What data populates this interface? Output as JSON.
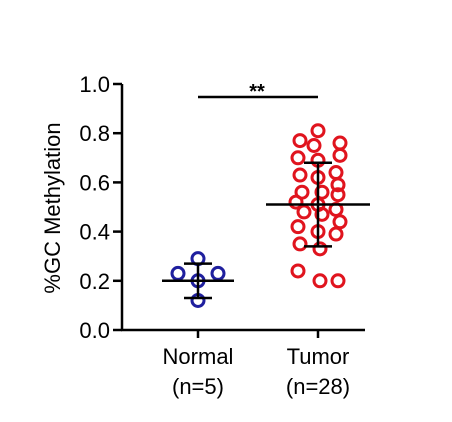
{
  "chart_data": {
    "type": "scatter",
    "ylabel": "%GC Methylation",
    "ylim": [
      0.0,
      1.0
    ],
    "yticks": [
      "0.0",
      "0.2",
      "0.4",
      "0.6",
      "0.8",
      "1.0"
    ],
    "categories": [
      {
        "line1": "Normal",
        "line2": "(n=5)"
      },
      {
        "line1": "Tumor",
        "line2": "(n=28)"
      }
    ],
    "significance": "**",
    "colors": {
      "Normal": "#1f1f9e",
      "Tumor": "#e0141e"
    },
    "series": [
      {
        "group": "Normal",
        "mean": 0.2,
        "sd_low": 0.13,
        "sd_high": 0.27,
        "values": [
          0.29,
          0.23,
          0.23,
          0.2,
          0.12
        ]
      },
      {
        "group": "Tumor",
        "mean": 0.51,
        "sd_low": 0.34,
        "sd_high": 0.68,
        "values": [
          0.81,
          0.77,
          0.76,
          0.75,
          0.71,
          0.7,
          0.69,
          0.64,
          0.63,
          0.62,
          0.59,
          0.56,
          0.56,
          0.55,
          0.52,
          0.51,
          0.49,
          0.48,
          0.47,
          0.44,
          0.42,
          0.4,
          0.39,
          0.35,
          0.33,
          0.24,
          0.2,
          0.2
        ]
      }
    ]
  }
}
